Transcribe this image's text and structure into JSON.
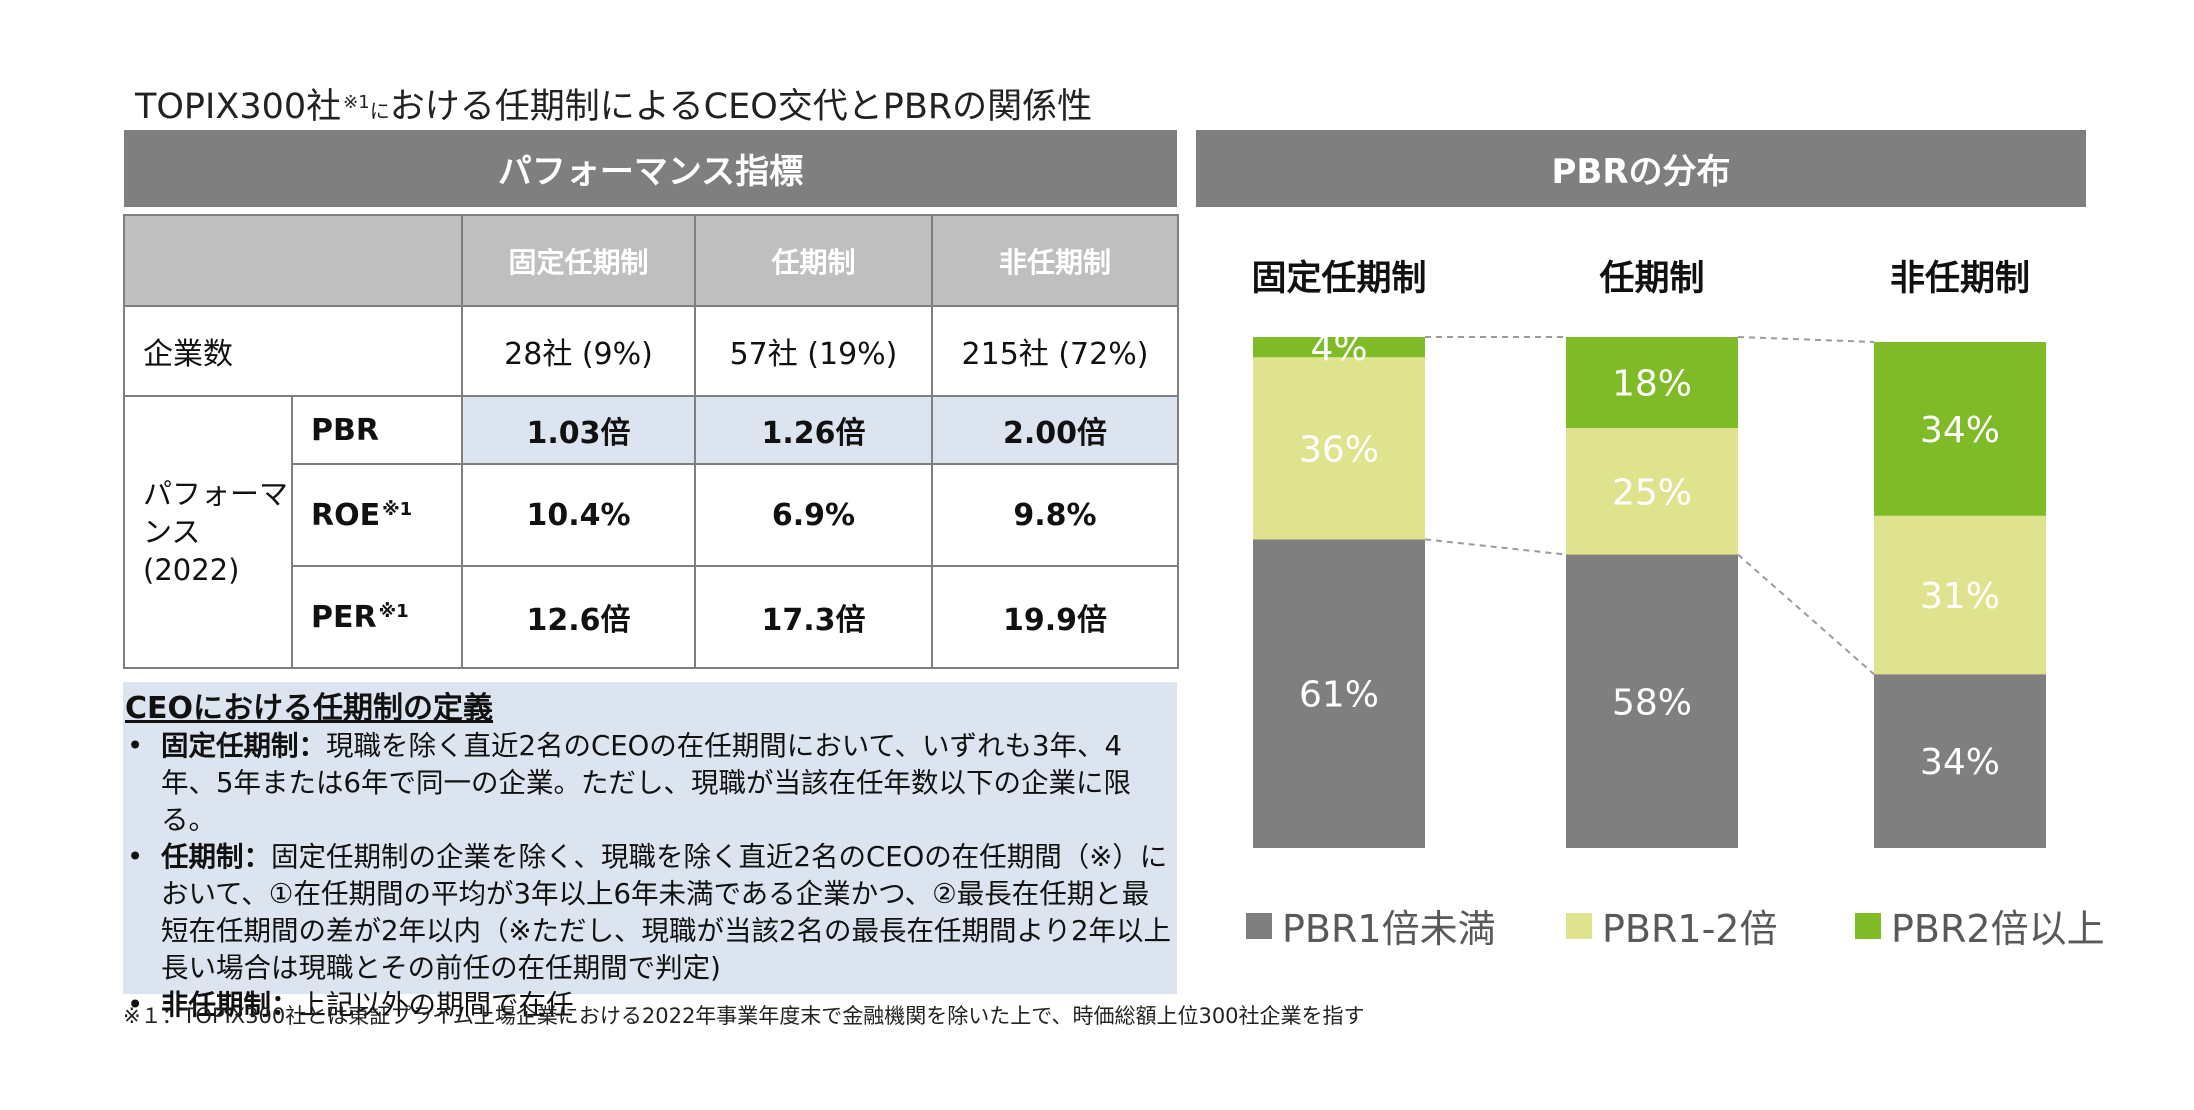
{
  "title": {
    "main": "TOPIX300社",
    "note_mark": "※1",
    "ni": "に",
    "rest": "おける任期制によるCEO交代とPBRの関係性"
  },
  "left_header": "パフォーマンス指標",
  "right_header": "PBRの分布",
  "table": {
    "columns": [
      "固定任期制",
      "任期制",
      "非任期制"
    ],
    "company_count": {
      "label": "企業数",
      "values": [
        "28社 (9%)",
        "57社 (19%)",
        "215社 (72%)"
      ]
    },
    "group_label": [
      "パフォーマ",
      "ンス",
      "(2022)"
    ],
    "rows": [
      {
        "label": "PBR",
        "note": "",
        "values": [
          "1.03倍",
          "1.26倍",
          "2.00倍"
        ]
      },
      {
        "label": "ROE",
        "note": "※1",
        "values": [
          "10.4%",
          "6.9%",
          "9.8%"
        ]
      },
      {
        "label": "PER",
        "note": "※1",
        "values": [
          "12.6倍",
          "17.3倍",
          "19.9倍"
        ]
      }
    ]
  },
  "definition": {
    "title": "CEOにおける任期制の定義",
    "items": [
      {
        "term": "固定任期制：",
        "text": "現職を除く直近2名のCEOの在任期間において、いずれも3年、4年、5年または6年で同一の企業。ただし、現職が当該在任年数以下の企業に限る。"
      },
      {
        "term": "任期制：",
        "text": "固定任期制の企業を除く、現職を除く直近2名のCEOの在任期間（※）において、①在任期間の平均が3年以上6年未満である企業かつ、②最長在任期と最短在任期間の差が2年以内（※ただし、現職が当該2名の最長在任期間より2年以上長い場合は現職とその前任の在任期間で判定)"
      },
      {
        "term": "非任期制：",
        "text": "上記以外の期間で在任"
      }
    ]
  },
  "footnote": "※１：TOPIX300社とは東証プライム上場企業における2022年事業年度末で金融機関を除いた上で、時価総額上位300社企業を指す",
  "chart_data": {
    "type": "bar",
    "stacked": true,
    "percent": true,
    "categories": [
      "固定任期制",
      "任期制",
      "非任期制"
    ],
    "series": [
      {
        "name": "PBR1倍未満",
        "values": [
          61,
          58,
          34
        ],
        "color": "#7f7f7f"
      },
      {
        "name": "PBR1-2倍",
        "values": [
          36,
          25,
          31
        ],
        "color": "#e0e38e"
      },
      {
        "name": "PBR2倍以上",
        "values": [
          4,
          18,
          34
        ],
        "color": "#7fba27"
      }
    ],
    "labels": [
      [
        "61%",
        "36%",
        "4%"
      ],
      [
        "58%",
        "25%",
        "18%"
      ],
      [
        "34%",
        "31%",
        "34%"
      ]
    ],
    "legend_position": "bottom",
    "grid": false
  }
}
